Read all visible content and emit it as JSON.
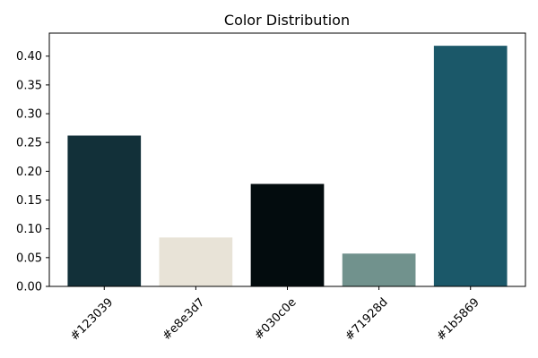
{
  "chart_data": {
    "type": "bar",
    "title": "Color Distribution",
    "xlabel": "",
    "ylabel": "",
    "categories": [
      "#123039",
      "#e8e3d7",
      "#030c0e",
      "#71928d",
      "#1b5869"
    ],
    "values": [
      0.262,
      0.085,
      0.178,
      0.057,
      0.418
    ],
    "bar_colors": [
      "#123039",
      "#e8e3d7",
      "#030c0e",
      "#71928d",
      "#1b5869"
    ],
    "ylim": [
      0,
      0.44
    ],
    "yticks": [
      0.0,
      0.05,
      0.1,
      0.15,
      0.2,
      0.25,
      0.3,
      0.35,
      0.4
    ],
    "ytick_labels": [
      "0.00",
      "0.05",
      "0.10",
      "0.15",
      "0.20",
      "0.25",
      "0.30",
      "0.35",
      "0.40"
    ],
    "grid": false,
    "legend": "none"
  }
}
